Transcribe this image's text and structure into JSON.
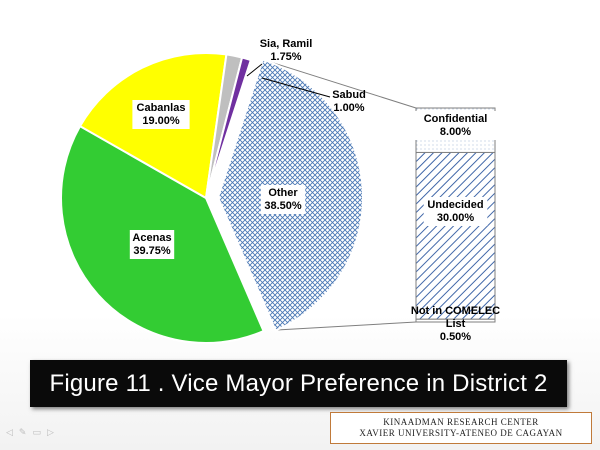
{
  "figure_caption": "Figure 11 . Vice Mayor Preference in District 2",
  "credit": {
    "line1": "KINAADMAN RESEARCH CENTER",
    "line2": "XAVIER UNIVERSITY-ATENEO DE CAGAYAN"
  },
  "chart_data": {
    "type": "pie",
    "pie": {
      "start_angle_deg": 18,
      "slices": [
        {
          "name": "Other",
          "value_label": "38.50%",
          "value": 38.5,
          "color": "#c7d7ec",
          "pattern": "dots"
        },
        {
          "name": "Acenas",
          "value_label": "39.75%",
          "value": 39.75,
          "color": "#33cc33"
        },
        {
          "name": "Cabanlas",
          "value_label": "19.00%",
          "value": 19.0,
          "color": "#ffff00"
        },
        {
          "name": "Sia, Ramil",
          "value_label": "1.75%",
          "value": 1.75,
          "color": "#bfbfbf"
        },
        {
          "name": "Sabud",
          "value_label": "1.00%",
          "value": 1.0,
          "color": "#7030a0"
        }
      ]
    },
    "breakdown": {
      "of": "Other",
      "segments": [
        {
          "name": "Confidential",
          "value_label": "8.00%",
          "value": 8.0,
          "pattern": "dots"
        },
        {
          "name": "Undecided",
          "value_label": "30.00%",
          "value": 30.0,
          "pattern": "diagonal"
        },
        {
          "name": "Not in COMELEC List",
          "value_label": "0.50%",
          "value": 0.5,
          "pattern": "none"
        }
      ]
    }
  },
  "controls": {
    "icons": [
      "prev-icon",
      "pen-icon",
      "menu-icon",
      "next-icon"
    ],
    "glyphs": [
      "◁",
      "✎",
      "▭",
      "▷"
    ]
  }
}
